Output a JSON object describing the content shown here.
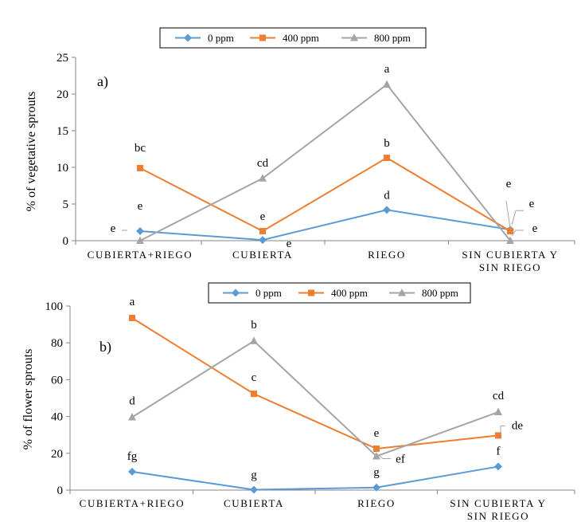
{
  "colors": {
    "series_0ppm": "#5b9bd5",
    "series_400ppm": "#ed7d31",
    "series_800ppm": "#a5a5a5",
    "axis": "#868686",
    "annotation_leader": "#a5a5a5"
  },
  "chart_data": [
    {
      "type": "line",
      "panel_label": "a)",
      "ylabel": "% of vegetative sprouts",
      "xlabel": "",
      "ylim": [
        0,
        25
      ],
      "yticks": [
        "0",
        "5",
        "10",
        "15",
        "20",
        "25"
      ],
      "grid": false,
      "legend_position": "top",
      "categories": [
        "CUBIERTA+RIEGO",
        "CUBIERTA",
        "RIEGO",
        "SIN CUBIERTA Y|SIN RIEGO"
      ],
      "series": [
        {
          "name": "0 ppm",
          "marker": "diamond",
          "values": [
            1.3,
            0.1,
            4.2,
            1.5
          ],
          "letters": [
            "e",
            "e",
            "d",
            "e"
          ]
        },
        {
          "name": "400 ppm",
          "marker": "square",
          "values": [
            9.9,
            1.3,
            11.3,
            1.3
          ],
          "letters": [
            "bc",
            "e",
            "b",
            "e"
          ]
        },
        {
          "name": "800 ppm",
          "marker": "triangle",
          "values": [
            0.0,
            8.5,
            21.3,
            0.0
          ],
          "letters": [
            "e",
            "cd",
            "a",
            "e"
          ]
        }
      ]
    },
    {
      "type": "line",
      "panel_label": "b)",
      "ylabel": "% of flower sprouts",
      "xlabel": "",
      "ylim": [
        0,
        100
      ],
      "yticks": [
        "0",
        "20",
        "40",
        "60",
        "80",
        "100"
      ],
      "grid": false,
      "legend_position": "top",
      "categories": [
        "CUBIERTA+RIEGO",
        "CUBIERTA",
        "RIEGO",
        "SIN CUBIERTA Y|SIN RIEGO"
      ],
      "series": [
        {
          "name": "0 ppm",
          "marker": "diamond",
          "values": [
            10.0,
            0.2,
            1.4,
            12.8
          ],
          "letters": [
            "fg",
            "g",
            "g",
            "f"
          ]
        },
        {
          "name": "400 ppm",
          "marker": "square",
          "values": [
            93.5,
            52.3,
            22.5,
            29.7
          ],
          "letters": [
            "a",
            "c",
            "e",
            "de"
          ]
        },
        {
          "name": "800 ppm",
          "marker": "triangle",
          "values": [
            39.6,
            81.0,
            18.4,
            42.4
          ],
          "letters": [
            "d",
            "b",
            "ef",
            "cd"
          ]
        }
      ]
    }
  ]
}
